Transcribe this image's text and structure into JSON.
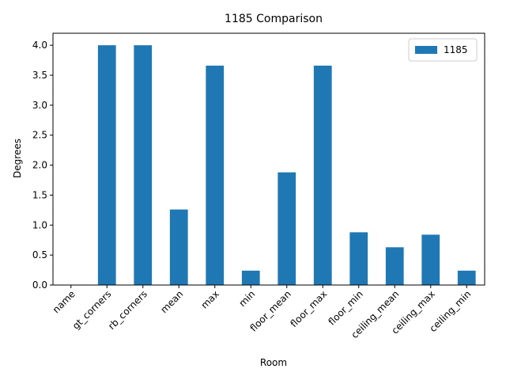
{
  "chart_data": {
    "type": "bar",
    "title": "1185 Comparison",
    "xlabel": "Room",
    "ylabel": "Degrees",
    "categories": [
      "name",
      "gt_corners",
      "rb_corners",
      "mean",
      "max",
      "min",
      "floor_mean",
      "floor_max",
      "floor_min",
      "ceiling_mean",
      "ceiling_max",
      "ceiling_min"
    ],
    "series": [
      {
        "name": "1185",
        "color": "#1f77b4",
        "values": [
          0,
          4.0,
          4.0,
          1.26,
          3.66,
          0.24,
          1.88,
          3.66,
          0.88,
          0.63,
          0.84,
          0.24
        ]
      }
    ],
    "ylim": [
      0,
      4.2
    ],
    "yticks": [
      "0.0",
      "0.5",
      "1.0",
      "1.5",
      "2.0",
      "2.5",
      "3.0",
      "3.5",
      "4.0"
    ],
    "grid": false,
    "legend_position": "top-right",
    "xtick_rotation": 45
  }
}
